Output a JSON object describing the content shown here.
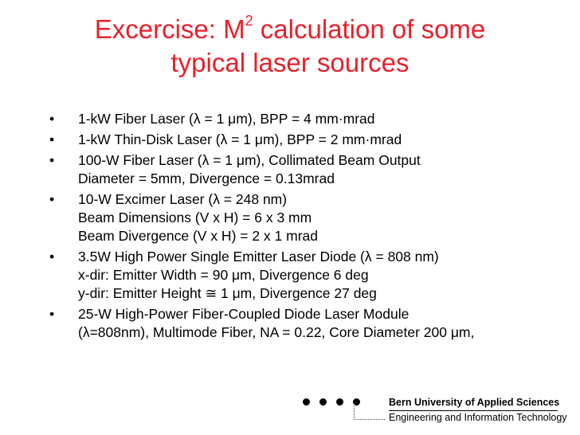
{
  "title": {
    "line1_before": "Excercise: M",
    "line1_sup": "2",
    "line1_after": " calculation of some",
    "line2": "typical laser sources"
  },
  "bullet_glyph": "•",
  "bullets": [
    {
      "lines": [
        "1-kW Fiber Laser (λ = 1 μm), BPP = 4 mm·mrad"
      ]
    },
    {
      "lines": [
        "1-kW Thin-Disk Laser (λ = 1 μm), BPP = 2 mm·mrad"
      ]
    },
    {
      "lines": [
        "100-W Fiber Laser (λ = 1 μm), Collimated Beam Output",
        "Diameter = 5mm, Divergence = 0.13mrad"
      ]
    },
    {
      "lines": [
        "10-W Excimer Laser (λ = 248 nm)",
        "Beam Dimensions (V x H) = 6 x 3 mm",
        "Beam Divergence (V x H) = 2 x 1 mrad"
      ]
    },
    {
      "lines": [
        "3.5W High Power Single Emitter Laser Diode (λ = 808 nm)",
        "x-dir: Emitter Width = 90 μm, Divergence 6 deg",
        "y-dir: Emitter Height ≅ 1 μm, Divergence 27 deg"
      ]
    },
    {
      "lines": [
        "25-W High-Power Fiber-Coupled Diode Laser Module",
        "(λ=808nm), Multimode Fiber, NA = 0.22, Core Diameter 200 μm,"
      ]
    }
  ],
  "footer": {
    "organization": "Bern University of Applied Sciences",
    "department": "Engineering and Information Technology"
  },
  "colors": {
    "title": "#e8202a",
    "text": "#000000",
    "background": "#ffffff"
  }
}
